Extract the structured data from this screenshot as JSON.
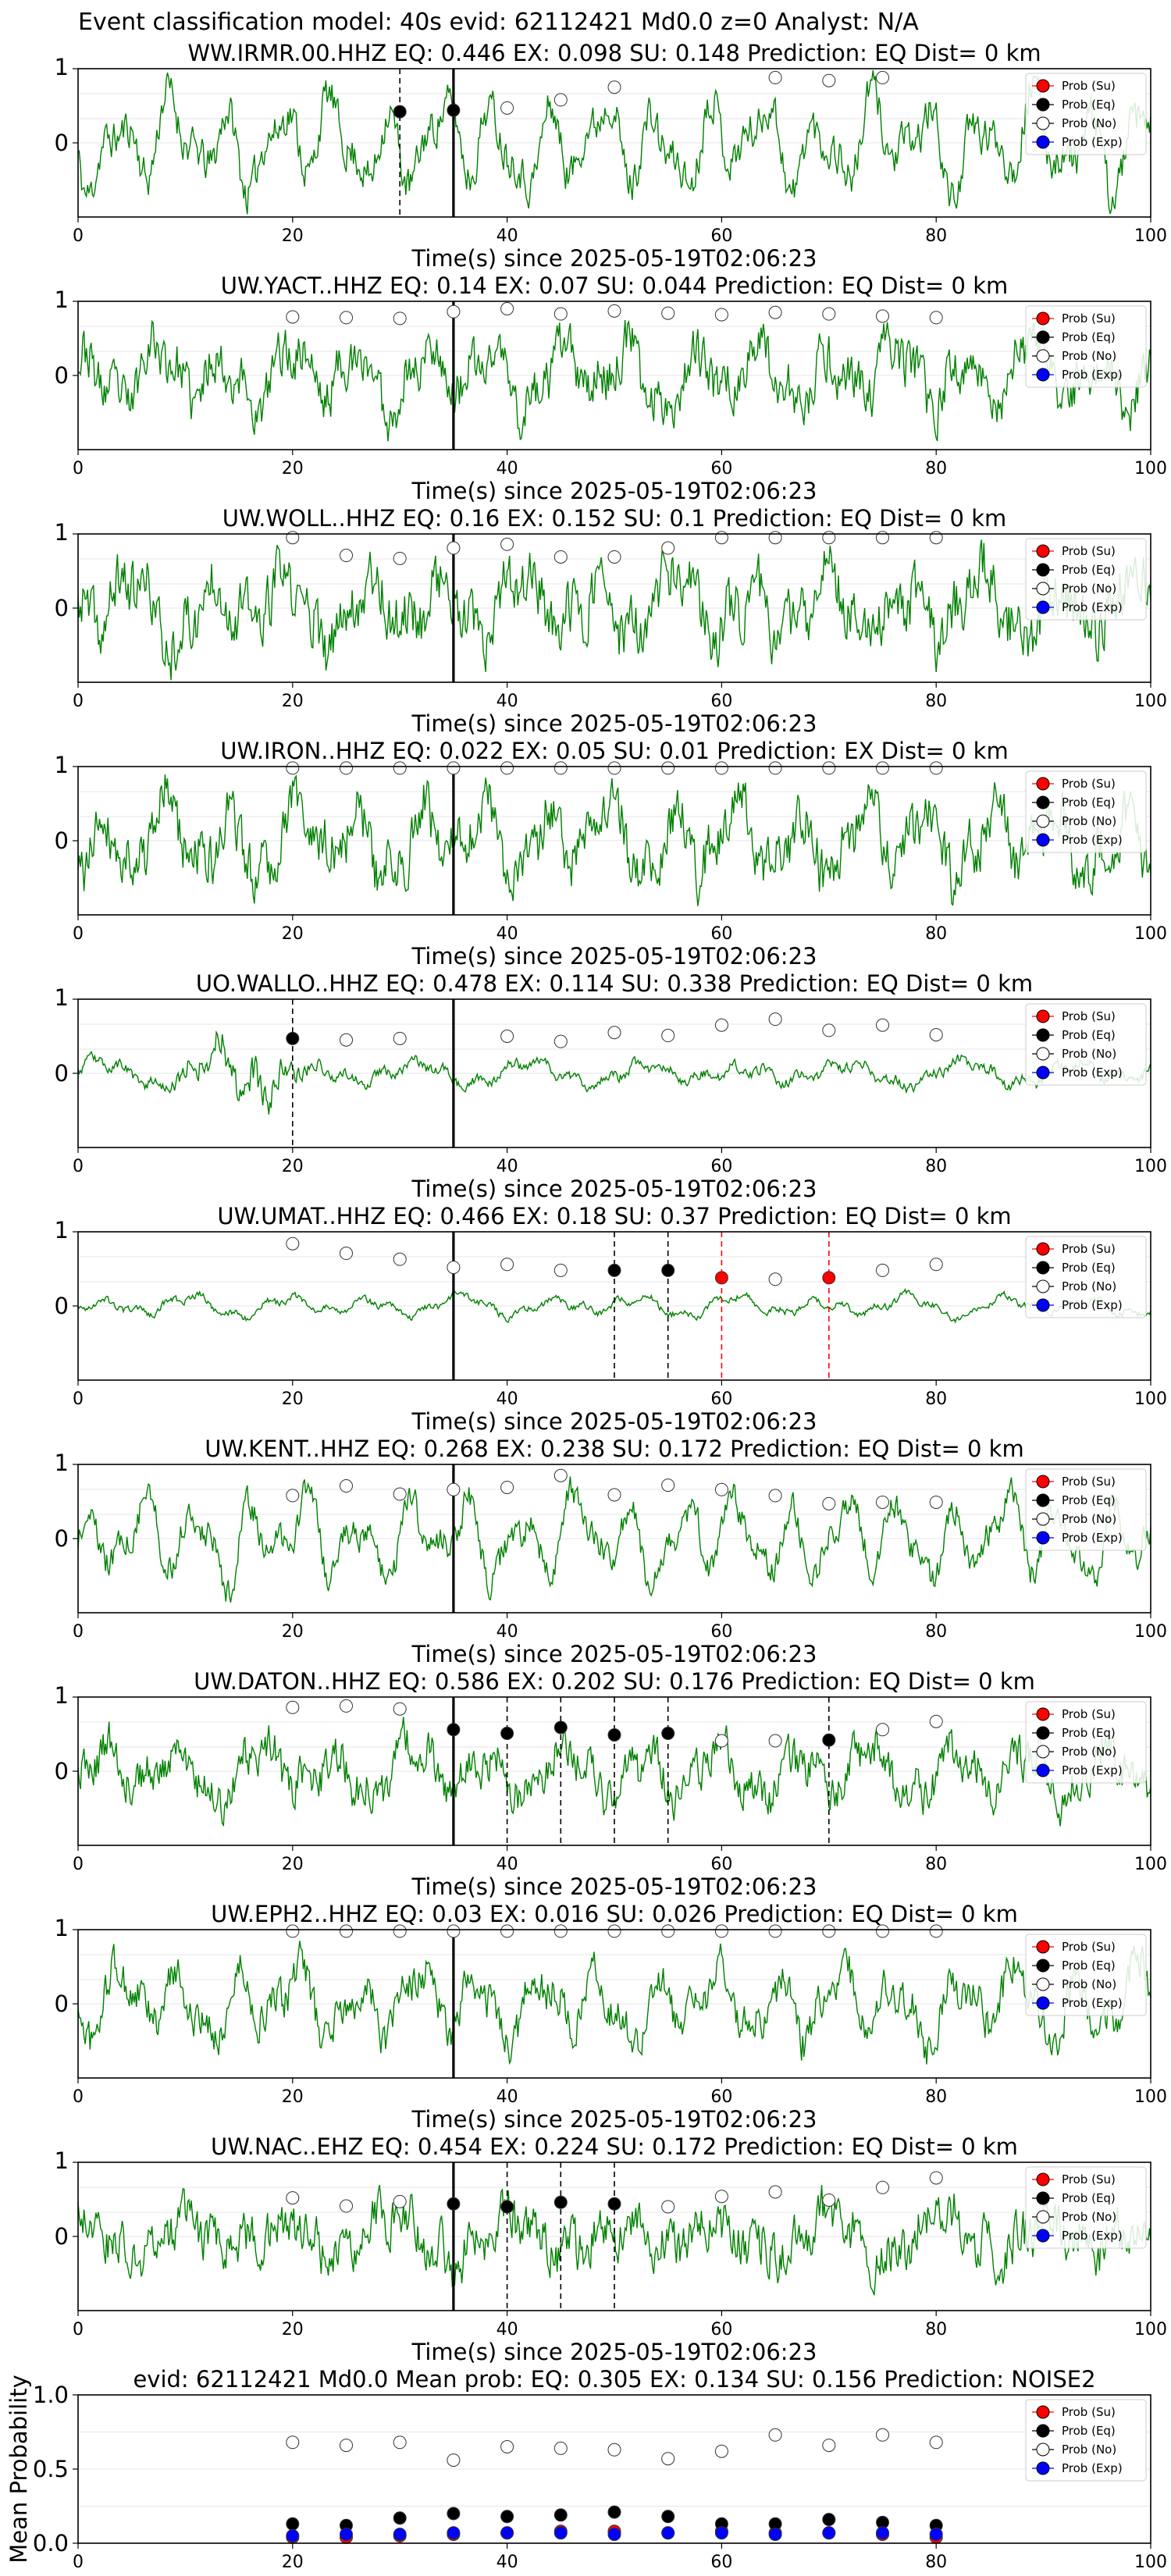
{
  "suptitle": "Event classification model: 40s evid: 62112421 Md0.0 z=0 Analyst: N/A",
  "colors": {
    "waveform": "#008000",
    "su": "#ff0000",
    "eq": "#000000",
    "no": "#ffffff",
    "exp": "#0000ff",
    "pick_su": "#ff0000",
    "pick_eq": "#000000"
  },
  "legend": [
    "Prob (Su)",
    "Prob (Eq)",
    "Prob (No)",
    "Prob (Exp)"
  ],
  "xlabel": "Time(s) since 2025-05-19T02:06:23",
  "mean_ylabel": "Mean Probability",
  "chart_data": [
    {
      "type": "line",
      "title": "WW.IRMR.00.HHZ   EQ: 0.446  EX: 0.098  SU: 0.148   Prediction: EQ    Dist= 0 km",
      "xlim": [
        0,
        100
      ],
      "yticks": [
        "1",
        "0"
      ],
      "xticks": [
        "0",
        "20",
        "40",
        "60",
        "80",
        "100"
      ],
      "grid": true,
      "legend_loc": "upper right",
      "seed": 11,
      "amp": 0.9,
      "noise": 0.25,
      "smooth": 1.0,
      "env": "flat",
      "origin": 35,
      "points": [
        {
          "x": 30,
          "y": 0.42,
          "c": "eq"
        },
        {
          "x": 35,
          "y": 0.44,
          "c": "eq"
        },
        {
          "x": 40,
          "y": 0.47,
          "c": "no"
        },
        {
          "x": 45,
          "y": 0.58,
          "c": "no"
        },
        {
          "x": 50,
          "y": 0.75,
          "c": "no"
        },
        {
          "x": 65,
          "y": 0.88,
          "c": "no"
        },
        {
          "x": 70,
          "y": 0.84,
          "c": "no"
        },
        {
          "x": 75,
          "y": 0.88,
          "c": "no"
        }
      ],
      "picks": [
        {
          "x": 30,
          "c": "eq"
        }
      ]
    },
    {
      "type": "line",
      "title": "UW.YACT..HHZ   EQ: 0.14  EX: 0.07  SU: 0.044   Prediction: EQ    Dist= 0 km",
      "xlim": [
        0,
        100
      ],
      "yticks": [
        "1",
        "0"
      ],
      "xticks": [
        "0",
        "20",
        "40",
        "60",
        "80",
        "100"
      ],
      "grid": true,
      "legend_loc": "upper right",
      "seed": 23,
      "amp": 0.7,
      "noise": 0.4,
      "smooth": 0.8,
      "env": "flat",
      "origin": 35,
      "points": [
        {
          "x": 20,
          "y": 0.79,
          "c": "no"
        },
        {
          "x": 25,
          "y": 0.78,
          "c": "no"
        },
        {
          "x": 30,
          "y": 0.77,
          "c": "no"
        },
        {
          "x": 35,
          "y": 0.86,
          "c": "no"
        },
        {
          "x": 40,
          "y": 0.9,
          "c": "no"
        },
        {
          "x": 45,
          "y": 0.83,
          "c": "no"
        },
        {
          "x": 50,
          "y": 0.87,
          "c": "no"
        },
        {
          "x": 55,
          "y": 0.84,
          "c": "no"
        },
        {
          "x": 60,
          "y": 0.82,
          "c": "no"
        },
        {
          "x": 65,
          "y": 0.85,
          "c": "no"
        },
        {
          "x": 70,
          "y": 0.83,
          "c": "no"
        },
        {
          "x": 75,
          "y": 0.8,
          "c": "no"
        },
        {
          "x": 80,
          "y": 0.78,
          "c": "no"
        }
      ],
      "picks": []
    },
    {
      "type": "line",
      "title": "UW.WOLL..HHZ   EQ: 0.16  EX: 0.152  SU: 0.1   Prediction: EQ    Dist= 0 km",
      "xlim": [
        0,
        100
      ],
      "yticks": [
        "1",
        "0"
      ],
      "xticks": [
        "0",
        "20",
        "40",
        "60",
        "80",
        "100"
      ],
      "grid": true,
      "legend_loc": "upper right",
      "seed": 37,
      "amp": 0.75,
      "noise": 0.45,
      "smooth": 0.7,
      "env": "flat",
      "origin": 35,
      "points": [
        {
          "x": 20,
          "y": 0.95,
          "c": "no"
        },
        {
          "x": 25,
          "y": 0.71,
          "c": "no"
        },
        {
          "x": 30,
          "y": 0.67,
          "c": "no"
        },
        {
          "x": 35,
          "y": 0.81,
          "c": "no"
        },
        {
          "x": 40,
          "y": 0.86,
          "c": "no"
        },
        {
          "x": 45,
          "y": 0.69,
          "c": "no"
        },
        {
          "x": 50,
          "y": 0.69,
          "c": "no"
        },
        {
          "x": 55,
          "y": 0.81,
          "c": "no"
        },
        {
          "x": 60,
          "y": 0.95,
          "c": "no"
        },
        {
          "x": 65,
          "y": 0.95,
          "c": "no"
        },
        {
          "x": 70,
          "y": 0.95,
          "c": "no"
        },
        {
          "x": 75,
          "y": 0.95,
          "c": "no"
        },
        {
          "x": 80,
          "y": 0.95,
          "c": "no"
        }
      ],
      "picks": []
    },
    {
      "type": "line",
      "title": "UW.IRON..HHZ   EQ: 0.022  EX: 0.05  SU: 0.01   Prediction: EX    Dist= 0 km",
      "xlim": [
        0,
        100
      ],
      "yticks": [
        "1",
        "0"
      ],
      "xticks": [
        "0",
        "20",
        "40",
        "60",
        "80",
        "100"
      ],
      "grid": true,
      "legend_loc": "upper right",
      "seed": 41,
      "amp": 0.8,
      "noise": 0.4,
      "smooth": 0.85,
      "env": "flat",
      "origin": 35,
      "points": [
        {
          "x": 20,
          "y": 0.98,
          "c": "no"
        },
        {
          "x": 25,
          "y": 0.98,
          "c": "no"
        },
        {
          "x": 30,
          "y": 0.98,
          "c": "no"
        },
        {
          "x": 35,
          "y": 0.98,
          "c": "no"
        },
        {
          "x": 40,
          "y": 0.98,
          "c": "no"
        },
        {
          "x": 45,
          "y": 0.98,
          "c": "no"
        },
        {
          "x": 50,
          "y": 0.98,
          "c": "no"
        },
        {
          "x": 55,
          "y": 0.98,
          "c": "no"
        },
        {
          "x": 60,
          "y": 0.98,
          "c": "no"
        },
        {
          "x": 65,
          "y": 0.98,
          "c": "no"
        },
        {
          "x": 70,
          "y": 0.98,
          "c": "no"
        },
        {
          "x": 75,
          "y": 0.98,
          "c": "no"
        },
        {
          "x": 80,
          "y": 0.98,
          "c": "no"
        }
      ],
      "picks": []
    },
    {
      "type": "line",
      "title": "UO.WALLO..HHZ   EQ: 0.478  EX: 0.114  SU: 0.338   Prediction: EQ    Dist= 0 km",
      "xlim": [
        0,
        100
      ],
      "yticks": [
        "1",
        "0"
      ],
      "xticks": [
        "0",
        "20",
        "40",
        "60",
        "80",
        "100"
      ],
      "grid": true,
      "legend_loc": "upper right",
      "seed": 53,
      "amp": 0.45,
      "noise": 0.25,
      "smooth": 0.5,
      "env": "burst",
      "burst": 15,
      "origin": 35,
      "points": [
        {
          "x": 20,
          "y": 0.47,
          "c": "eq"
        },
        {
          "x": 25,
          "y": 0.45,
          "c": "no"
        },
        {
          "x": 30,
          "y": 0.47,
          "c": "no"
        },
        {
          "x": 40,
          "y": 0.5,
          "c": "no"
        },
        {
          "x": 45,
          "y": 0.43,
          "c": "no"
        },
        {
          "x": 50,
          "y": 0.55,
          "c": "no"
        },
        {
          "x": 55,
          "y": 0.51,
          "c": "no"
        },
        {
          "x": 60,
          "y": 0.65,
          "c": "no"
        },
        {
          "x": 65,
          "y": 0.73,
          "c": "no"
        },
        {
          "x": 70,
          "y": 0.58,
          "c": "no"
        },
        {
          "x": 75,
          "y": 0.65,
          "c": "no"
        },
        {
          "x": 80,
          "y": 0.52,
          "c": "no"
        }
      ],
      "picks": [
        {
          "x": 20,
          "c": "eq"
        }
      ]
    },
    {
      "type": "line",
      "title": "UW.UMAT..HHZ   EQ: 0.466  EX: 0.18  SU: 0.37   Prediction: EQ    Dist= 0 km",
      "xlim": [
        0,
        100
      ],
      "yticks": [
        "1",
        "0"
      ],
      "xticks": [
        "0",
        "20",
        "40",
        "60",
        "80",
        "100"
      ],
      "grid": true,
      "legend_loc": "upper right",
      "seed": 67,
      "amp": 0.22,
      "noise": 0.18,
      "smooth": 0.6,
      "env": "flat",
      "origin": 35,
      "points": [
        {
          "x": 20,
          "y": 0.84,
          "c": "no"
        },
        {
          "x": 25,
          "y": 0.71,
          "c": "no"
        },
        {
          "x": 30,
          "y": 0.63,
          "c": "no"
        },
        {
          "x": 35,
          "y": 0.52,
          "c": "no"
        },
        {
          "x": 40,
          "y": 0.56,
          "c": "no"
        },
        {
          "x": 45,
          "y": 0.48,
          "c": "no"
        },
        {
          "x": 50,
          "y": 0.48,
          "c": "eq"
        },
        {
          "x": 55,
          "y": 0.48,
          "c": "eq"
        },
        {
          "x": 60,
          "y": 0.38,
          "c": "su"
        },
        {
          "x": 65,
          "y": 0.36,
          "c": "no"
        },
        {
          "x": 70,
          "y": 0.38,
          "c": "su"
        },
        {
          "x": 75,
          "y": 0.48,
          "c": "no"
        },
        {
          "x": 80,
          "y": 0.56,
          "c": "no"
        }
      ],
      "picks": [
        {
          "x": 50,
          "c": "eq"
        },
        {
          "x": 55,
          "c": "eq"
        },
        {
          "x": 60,
          "c": "su"
        },
        {
          "x": 70,
          "c": "su"
        }
      ]
    },
    {
      "type": "line",
      "title": "UW.KENT..HHZ   EQ: 0.268  EX: 0.238  SU: 0.172   Prediction: EQ    Dist= 0 km",
      "xlim": [
        0,
        100
      ],
      "yticks": [
        "1",
        "0"
      ],
      "xticks": [
        "0",
        "20",
        "40",
        "60",
        "80",
        "100"
      ],
      "grid": true,
      "legend_loc": "upper right",
      "seed": 79,
      "amp": 0.85,
      "noise": 0.2,
      "smooth": 1.0,
      "env": "flat",
      "origin": 35,
      "points": [
        {
          "x": 20,
          "y": 0.58,
          "c": "no"
        },
        {
          "x": 25,
          "y": 0.71,
          "c": "no"
        },
        {
          "x": 30,
          "y": 0.6,
          "c": "no"
        },
        {
          "x": 35,
          "y": 0.66,
          "c": "no"
        },
        {
          "x": 40,
          "y": 0.69,
          "c": "no"
        },
        {
          "x": 45,
          "y": 0.85,
          "c": "no"
        },
        {
          "x": 50,
          "y": 0.59,
          "c": "no"
        },
        {
          "x": 55,
          "y": 0.72,
          "c": "no"
        },
        {
          "x": 60,
          "y": 0.66,
          "c": "no"
        },
        {
          "x": 65,
          "y": 0.58,
          "c": "no"
        },
        {
          "x": 70,
          "y": 0.47,
          "c": "no"
        },
        {
          "x": 75,
          "y": 0.49,
          "c": "no"
        },
        {
          "x": 80,
          "y": 0.49,
          "c": "no"
        }
      ],
      "picks": []
    },
    {
      "type": "line",
      "title": "UW.DATON..HHZ   EQ: 0.586  EX: 0.202  SU: 0.176   Prediction: EQ    Dist= 0 km",
      "xlim": [
        0,
        100
      ],
      "yticks": [
        "1",
        "0"
      ],
      "xticks": [
        "0",
        "20",
        "40",
        "60",
        "80",
        "100"
      ],
      "grid": true,
      "legend_loc": "upper right",
      "seed": 89,
      "amp": 0.6,
      "noise": 0.4,
      "smooth": 0.7,
      "env": "flat",
      "origin": 35,
      "points": [
        {
          "x": 20,
          "y": 0.86,
          "c": "no"
        },
        {
          "x": 25,
          "y": 0.88,
          "c": "no"
        },
        {
          "x": 30,
          "y": 0.84,
          "c": "no"
        },
        {
          "x": 35,
          "y": 0.56,
          "c": "eq"
        },
        {
          "x": 40,
          "y": 0.51,
          "c": "eq"
        },
        {
          "x": 45,
          "y": 0.59,
          "c": "eq"
        },
        {
          "x": 50,
          "y": 0.49,
          "c": "eq"
        },
        {
          "x": 55,
          "y": 0.51,
          "c": "eq"
        },
        {
          "x": 60,
          "y": 0.41,
          "c": "no"
        },
        {
          "x": 65,
          "y": 0.41,
          "c": "no"
        },
        {
          "x": 70,
          "y": 0.42,
          "c": "eq"
        },
        {
          "x": 75,
          "y": 0.56,
          "c": "no"
        },
        {
          "x": 80,
          "y": 0.67,
          "c": "no"
        }
      ],
      "picks": [
        {
          "x": 40,
          "c": "eq"
        },
        {
          "x": 45,
          "c": "eq"
        },
        {
          "x": 50,
          "c": "eq"
        },
        {
          "x": 55,
          "c": "eq"
        },
        {
          "x": 70,
          "c": "eq"
        }
      ]
    },
    {
      "type": "line",
      "title": "UW.EPH2..HHZ   EQ: 0.03  EX: 0.016  SU: 0.026   Prediction: EQ    Dist= 0 km",
      "xlim": [
        0,
        100
      ],
      "yticks": [
        "1",
        "0"
      ],
      "xticks": [
        "0",
        "20",
        "40",
        "60",
        "80",
        "100"
      ],
      "grid": true,
      "legend_loc": "upper right",
      "seed": 97,
      "amp": 0.75,
      "noise": 0.3,
      "smooth": 0.9,
      "env": "flat",
      "origin": 35,
      "points": [
        {
          "x": 20,
          "y": 0.98,
          "c": "no"
        },
        {
          "x": 25,
          "y": 0.98,
          "c": "no"
        },
        {
          "x": 30,
          "y": 0.98,
          "c": "no"
        },
        {
          "x": 35,
          "y": 0.98,
          "c": "no"
        },
        {
          "x": 40,
          "y": 0.98,
          "c": "no"
        },
        {
          "x": 45,
          "y": 0.98,
          "c": "no"
        },
        {
          "x": 50,
          "y": 0.98,
          "c": "no"
        },
        {
          "x": 55,
          "y": 0.98,
          "c": "no"
        },
        {
          "x": 60,
          "y": 0.98,
          "c": "no"
        },
        {
          "x": 65,
          "y": 0.98,
          "c": "no"
        },
        {
          "x": 70,
          "y": 0.98,
          "c": "no"
        },
        {
          "x": 75,
          "y": 0.98,
          "c": "no"
        },
        {
          "x": 80,
          "y": 0.98,
          "c": "no"
        }
      ],
      "picks": []
    },
    {
      "type": "line",
      "title": "UW.NAC..EHZ   EQ: 0.454  EX: 0.224  SU: 0.172   Prediction: EQ    Dist= 0 km",
      "xlim": [
        0,
        100
      ],
      "yticks": [
        "1",
        "0"
      ],
      "xticks": [
        "0",
        "20",
        "40",
        "60",
        "80",
        "100"
      ],
      "grid": true,
      "legend_loc": "upper right",
      "seed": 103,
      "amp": 0.5,
      "noise": 0.55,
      "smooth": 0.5,
      "env": "flat",
      "origin": 35,
      "points": [
        {
          "x": 20,
          "y": 0.52,
          "c": "no"
        },
        {
          "x": 25,
          "y": 0.41,
          "c": "no"
        },
        {
          "x": 30,
          "y": 0.47,
          "c": "no"
        },
        {
          "x": 35,
          "y": 0.44,
          "c": "eq"
        },
        {
          "x": 40,
          "y": 0.4,
          "c": "eq"
        },
        {
          "x": 45,
          "y": 0.46,
          "c": "eq"
        },
        {
          "x": 50,
          "y": 0.44,
          "c": "eq"
        },
        {
          "x": 55,
          "y": 0.4,
          "c": "no"
        },
        {
          "x": 60,
          "y": 0.54,
          "c": "no"
        },
        {
          "x": 65,
          "y": 0.6,
          "c": "no"
        },
        {
          "x": 70,
          "y": 0.49,
          "c": "no"
        },
        {
          "x": 75,
          "y": 0.66,
          "c": "no"
        },
        {
          "x": 80,
          "y": 0.79,
          "c": "no"
        }
      ],
      "picks": [
        {
          "x": 40,
          "c": "eq"
        },
        {
          "x": 45,
          "c": "eq"
        },
        {
          "x": 50,
          "c": "eq"
        }
      ]
    },
    {
      "type": "scatter",
      "title": "evid: 62112421  Md0.0   Mean prob:   EQ: 0.305  EX: 0.134  SU: 0.156   Prediction: NOISE2",
      "ylabel": "Mean Probability",
      "xlim": [
        0,
        100
      ],
      "ylim": [
        0,
        1
      ],
      "yticks": [
        "1.0",
        "0.5",
        "0.0"
      ],
      "xticks": [
        "0",
        "20",
        "40",
        "60",
        "80",
        "100"
      ],
      "grid": true,
      "legend_loc": "upper right",
      "x": [
        20,
        25,
        30,
        35,
        40,
        45,
        50,
        55,
        60,
        65,
        70,
        75,
        80
      ],
      "series": [
        {
          "name": "Prob (Su)",
          "c": "su",
          "values": [
            0.04,
            0.04,
            0.05,
            0.06,
            0.07,
            0.08,
            0.08,
            0.07,
            0.08,
            0.07,
            0.07,
            0.06,
            0.04
          ]
        },
        {
          "name": "Prob (Eq)",
          "c": "eq",
          "values": [
            0.13,
            0.12,
            0.17,
            0.2,
            0.18,
            0.19,
            0.21,
            0.18,
            0.13,
            0.13,
            0.16,
            0.14,
            0.12
          ]
        },
        {
          "name": "Prob (No)",
          "c": "no",
          "values": [
            0.68,
            0.66,
            0.68,
            0.56,
            0.65,
            0.64,
            0.63,
            0.57,
            0.62,
            0.73,
            0.66,
            0.73,
            0.68
          ]
        },
        {
          "name": "Prob (Exp)",
          "c": "exp",
          "values": [
            0.05,
            0.06,
            0.06,
            0.07,
            0.07,
            0.07,
            0.06,
            0.07,
            0.07,
            0.06,
            0.07,
            0.07,
            0.06
          ]
        }
      ]
    }
  ]
}
